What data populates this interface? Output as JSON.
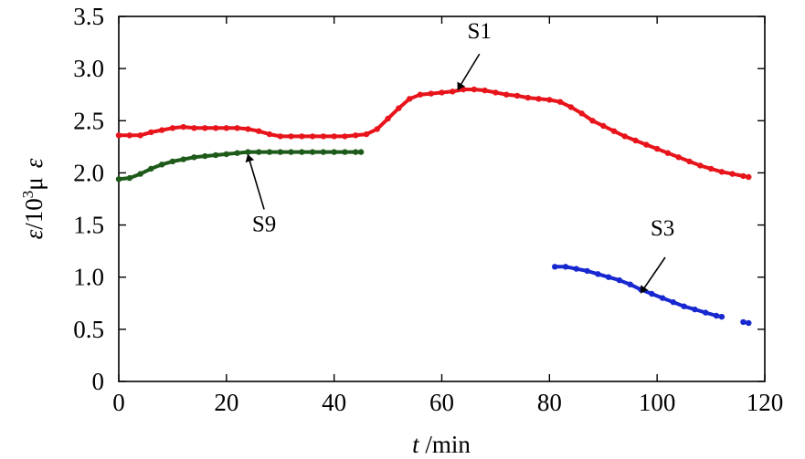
{
  "chart_data": {
    "type": "scatter",
    "xlabel": "t /min",
    "xlabel_italic": "t",
    "xlabel_rest": " /min",
    "ylabel_parts": [
      "ε",
      "/10",
      "3",
      "μ",
      "ε"
    ],
    "xlim": [
      0,
      120
    ],
    "ylim": [
      0,
      3.5
    ],
    "xticks": [
      0,
      20,
      40,
      60,
      80,
      100,
      120
    ],
    "yticks": [
      0,
      0.5,
      1.0,
      1.5,
      2.0,
      2.5,
      3.0,
      3.5
    ],
    "xtick_labels": [
      "0",
      "20",
      "40",
      "60",
      "80",
      "100",
      "120"
    ],
    "ytick_labels": [
      "0",
      "0.5",
      "1.0",
      "1.5",
      "2.0",
      "2.5",
      "3.0",
      "3.5"
    ],
    "grid": false,
    "series": [
      {
        "name": "S1",
        "color": "#e8141b",
        "points": [
          [
            0,
            2.36
          ],
          [
            2,
            2.36
          ],
          [
            4,
            2.36
          ],
          [
            6,
            2.39
          ],
          [
            8,
            2.41
          ],
          [
            10,
            2.43
          ],
          [
            12,
            2.44
          ],
          [
            14,
            2.43
          ],
          [
            16,
            2.43
          ],
          [
            18,
            2.43
          ],
          [
            20,
            2.43
          ],
          [
            22,
            2.43
          ],
          [
            24,
            2.42
          ],
          [
            26,
            2.4
          ],
          [
            28,
            2.37
          ],
          [
            30,
            2.35
          ],
          [
            32,
            2.35
          ],
          [
            34,
            2.35
          ],
          [
            36,
            2.35
          ],
          [
            38,
            2.35
          ],
          [
            40,
            2.35
          ],
          [
            42,
            2.35
          ],
          [
            44,
            2.36
          ],
          [
            46,
            2.37
          ],
          [
            48,
            2.42
          ],
          [
            50,
            2.52
          ],
          [
            52,
            2.62
          ],
          [
            54,
            2.71
          ],
          [
            56,
            2.75
          ],
          [
            58,
            2.76
          ],
          [
            60,
            2.77
          ],
          [
            62,
            2.78
          ],
          [
            64,
            2.8
          ],
          [
            66,
            2.8
          ],
          [
            68,
            2.79
          ],
          [
            70,
            2.77
          ],
          [
            72,
            2.75
          ],
          [
            74,
            2.74
          ],
          [
            76,
            2.72
          ],
          [
            78,
            2.71
          ],
          [
            80,
            2.7
          ],
          [
            82,
            2.68
          ],
          [
            84,
            2.63
          ],
          [
            86,
            2.57
          ],
          [
            88,
            2.5
          ],
          [
            90,
            2.45
          ],
          [
            92,
            2.4
          ],
          [
            94,
            2.35
          ],
          [
            96,
            2.31
          ],
          [
            98,
            2.27
          ],
          [
            100,
            2.23
          ],
          [
            102,
            2.19
          ],
          [
            104,
            2.15
          ],
          [
            106,
            2.11
          ],
          [
            108,
            2.07
          ],
          [
            110,
            2.04
          ],
          [
            112,
            2.01
          ],
          [
            114,
            1.99
          ],
          [
            116,
            1.97
          ],
          [
            117,
            1.96
          ]
        ]
      },
      {
        "name": "S9",
        "color": "#1e5a1a",
        "points": [
          [
            0,
            1.94
          ],
          [
            2,
            1.95
          ],
          [
            4,
            1.99
          ],
          [
            6,
            2.04
          ],
          [
            8,
            2.08
          ],
          [
            10,
            2.11
          ],
          [
            12,
            2.13
          ],
          [
            14,
            2.15
          ],
          [
            16,
            2.16
          ],
          [
            18,
            2.17
          ],
          [
            20,
            2.18
          ],
          [
            22,
            2.19
          ],
          [
            24,
            2.2
          ],
          [
            26,
            2.2
          ],
          [
            28,
            2.2
          ],
          [
            30,
            2.2
          ],
          [
            32,
            2.2
          ],
          [
            34,
            2.2
          ],
          [
            36,
            2.2
          ],
          [
            38,
            2.2
          ],
          [
            40,
            2.2
          ],
          [
            42,
            2.2
          ],
          [
            44,
            2.2
          ],
          [
            45,
            2.2
          ]
        ]
      },
      {
        "name": "S3",
        "color": "#1828d0",
        "points": [
          [
            81,
            1.1
          ],
          [
            83,
            1.1
          ],
          [
            85,
            1.08
          ],
          [
            87,
            1.06
          ],
          [
            89,
            1.03
          ],
          [
            91,
            1.0
          ],
          [
            93,
            0.97
          ],
          [
            95,
            0.93
          ],
          [
            97,
            0.88
          ],
          [
            99,
            0.84
          ],
          [
            101,
            0.8
          ],
          [
            103,
            0.76
          ],
          [
            105,
            0.72
          ],
          [
            107,
            0.69
          ],
          [
            109,
            0.66
          ],
          [
            111,
            0.63
          ],
          [
            112,
            0.62
          ],
          [
            116,
            0.57
          ],
          [
            117,
            0.56
          ]
        ]
      }
    ],
    "annotations": [
      {
        "text": "S1",
        "series": "S1",
        "label_at": [
          67,
          3.29
        ],
        "arrow_from": [
          67,
          3.14
        ],
        "arrow_to": [
          63,
          2.8
        ]
      },
      {
        "text": "S9",
        "series": "S9",
        "label_at": [
          27,
          1.44
        ],
        "arrow_from": [
          27,
          1.65
        ],
        "arrow_to": [
          24,
          2.17
        ]
      },
      {
        "text": "S3",
        "series": "S3",
        "label_at": [
          101,
          1.4
        ],
        "arrow_from": [
          101.5,
          1.19
        ],
        "arrow_to": [
          97,
          0.85
        ]
      }
    ]
  }
}
